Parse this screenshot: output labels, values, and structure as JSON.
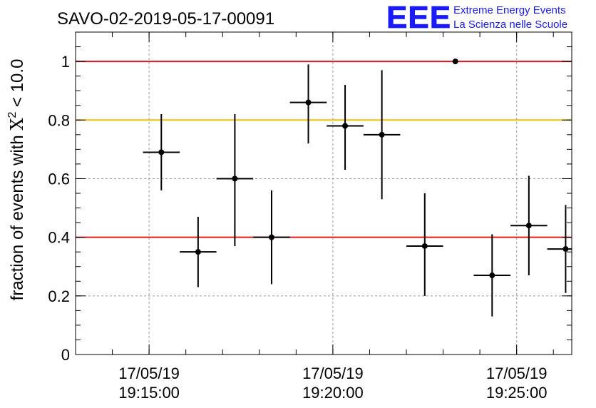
{
  "title": "SAVO-02-2019-05-17-00091",
  "logo": {
    "text": "EEE",
    "line1": "Extreme Energy Events",
    "line2": "La Scienza nelle Scuole",
    "color": "#1a1aff"
  },
  "chart_data": {
    "type": "scatter",
    "title": "SAVO-02-2019-05-17-00091",
    "xlabel": "",
    "ylabel_prefix": "fraction of events with ",
    "ylabel_symbol": "X",
    "ylabel_exponent": "2",
    "ylabel_suffix": " < 10.0",
    "ylim": [
      0,
      1.1
    ],
    "xlim": [
      "17/05/19 19:13:00",
      "17/05/19 19:26:30"
    ],
    "grid": true,
    "yticks": [
      {
        "value": 0,
        "label": "0"
      },
      {
        "value": 0.2,
        "label": "0.2"
      },
      {
        "value": 0.4,
        "label": "0.4"
      },
      {
        "value": 0.6,
        "label": "0.6"
      },
      {
        "value": 0.8,
        "label": "0.8"
      },
      {
        "value": 1,
        "label": "1"
      }
    ],
    "xticks": [
      {
        "value": "17/05/19 19:15:00",
        "date": "17/05/19",
        "time": "19:15:00"
      },
      {
        "value": "17/05/19 19:20:00",
        "date": "17/05/19",
        "time": "19:20:00"
      },
      {
        "value": "17/05/19 19:25:00",
        "date": "17/05/19",
        "time": "19:25:00"
      }
    ],
    "reference_lines": [
      {
        "y": 1.0,
        "color": "#e8171b"
      },
      {
        "y": 0.8,
        "color": "#f5c000"
      },
      {
        "y": 0.4,
        "color": "#e8171b"
      }
    ],
    "points": [
      {
        "x": "19:15:20",
        "y": 0.69,
        "x_err_seconds": 30,
        "y_low": 0.56,
        "y_high": 0.82
      },
      {
        "x": "19:16:20",
        "y": 0.35,
        "x_err_seconds": 30,
        "y_low": 0.23,
        "y_high": 0.47
      },
      {
        "x": "19:17:20",
        "y": 0.6,
        "x_err_seconds": 30,
        "y_low": 0.37,
        "y_high": 0.82
      },
      {
        "x": "19:18:20",
        "y": 0.4,
        "x_err_seconds": 30,
        "y_low": 0.24,
        "y_high": 0.56
      },
      {
        "x": "19:19:20",
        "y": 0.86,
        "x_err_seconds": 30,
        "y_low": 0.72,
        "y_high": 0.99
      },
      {
        "x": "19:20:20",
        "y": 0.78,
        "x_err_seconds": 30,
        "y_low": 0.63,
        "y_high": 0.92
      },
      {
        "x": "19:21:20",
        "y": 0.75,
        "x_err_seconds": 30,
        "y_low": 0.53,
        "y_high": 0.97
      },
      {
        "x": "19:22:30",
        "y": 0.37,
        "x_err_seconds": 30,
        "y_low": 0.2,
        "y_high": 0.55
      },
      {
        "x": "19:23:20",
        "y": 1.0,
        "x_err_seconds": 0,
        "y_low": 1.0,
        "y_high": 1.0
      },
      {
        "x": "19:24:20",
        "y": 0.27,
        "x_err_seconds": 30,
        "y_low": 0.13,
        "y_high": 0.41
      },
      {
        "x": "19:25:20",
        "y": 0.44,
        "x_err_seconds": 30,
        "y_low": 0.27,
        "y_high": 0.61
      },
      {
        "x": "19:26:20",
        "y": 0.36,
        "x_err_seconds": 30,
        "y_low": 0.21,
        "y_high": 0.51
      }
    ]
  }
}
